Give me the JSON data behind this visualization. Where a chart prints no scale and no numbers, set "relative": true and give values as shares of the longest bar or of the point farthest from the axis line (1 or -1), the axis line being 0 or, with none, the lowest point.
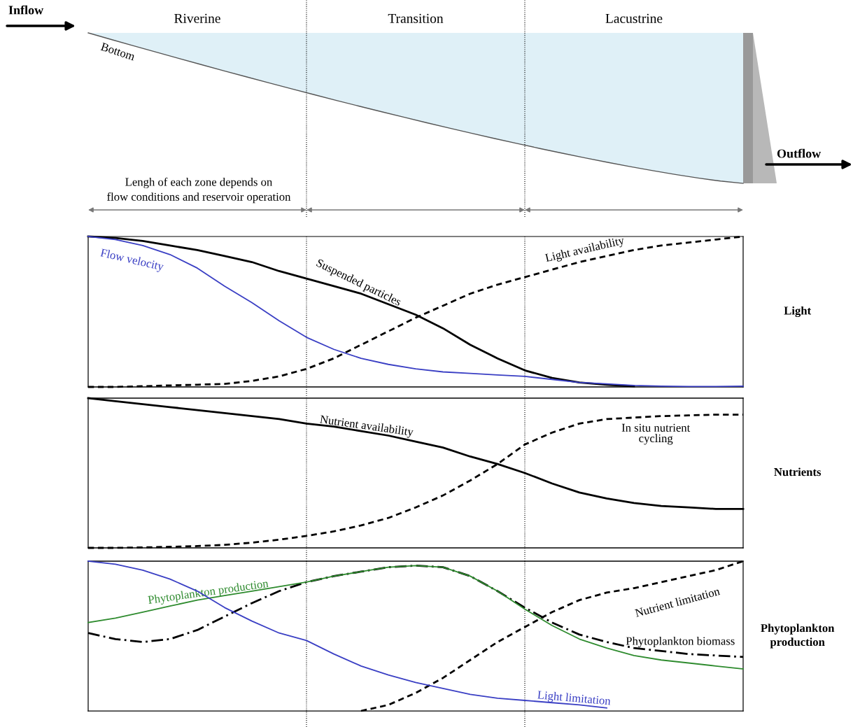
{
  "chart_data": [
    {
      "type": "other",
      "categories": [
        "Riverine",
        "Transition",
        "Lacustrine"
      ],
      "annotations": [
        "Inflow",
        "Outflow",
        "Bottom",
        "Lengh of each zone depends on\nflow conditions and reservoir operation"
      ]
    },
    {
      "type": "line",
      "relative": true,
      "ylabel": "Light",
      "categories": [
        null,
        null,
        null,
        null,
        null,
        null,
        null,
        null,
        null,
        null,
        null,
        null,
        null,
        null,
        null,
        null,
        null,
        null,
        null,
        null,
        null,
        null,
        null,
        null,
        null
      ],
      "series": [
        {
          "name": "Flow velocity",
          "color": "#3a3fc4",
          "line_style": "solid",
          "values": [
            1.0,
            0.98,
            0.94,
            0.88,
            0.79,
            0.67,
            0.56,
            0.44,
            0.33,
            0.25,
            0.19,
            0.15,
            0.12,
            0.1,
            0.09,
            0.08,
            0.07,
            0.05,
            0.03,
            0.02,
            0.01,
            0.005,
            0.003,
            0.003,
            0.005
          ]
        },
        {
          "name": "Suspended particles",
          "color": "#000000",
          "line_style": "solid",
          "values": [
            1.0,
            0.99,
            0.97,
            0.94,
            0.91,
            0.87,
            0.83,
            0.77,
            0.72,
            0.67,
            0.62,
            0.55,
            0.48,
            0.39,
            0.28,
            0.19,
            0.11,
            0.06,
            0.03,
            0.015,
            0.005,
            null,
            null,
            null,
            null
          ]
        },
        {
          "name": "Light availability",
          "color": "#000000",
          "line_style": "dashed",
          "values": [
            0,
            0,
            0.005,
            0.01,
            0.015,
            0.02,
            0.04,
            0.07,
            0.12,
            0.19,
            0.28,
            0.37,
            0.46,
            0.54,
            0.62,
            0.68,
            0.73,
            0.78,
            0.83,
            0.87,
            0.91,
            0.94,
            0.96,
            0.98,
            1.0
          ]
        }
      ]
    },
    {
      "type": "line",
      "relative": true,
      "ylabel": "Nutrients",
      "categories": [
        null,
        null,
        null,
        null,
        null,
        null,
        null,
        null,
        null,
        null,
        null,
        null,
        null,
        null,
        null,
        null,
        null,
        null,
        null,
        null,
        null,
        null,
        null,
        null,
        null
      ],
      "series": [
        {
          "name": "Nutrient availability",
          "color": "#000000",
          "line_style": "solid",
          "values": [
            1.0,
            0.98,
            0.96,
            0.94,
            0.92,
            0.9,
            0.88,
            0.86,
            0.83,
            0.81,
            0.78,
            0.75,
            0.71,
            0.67,
            0.61,
            0.56,
            0.5,
            0.43,
            0.37,
            0.33,
            0.3,
            0.28,
            0.27,
            0.26,
            0.26
          ]
        },
        {
          "name": "In situ nutrient\ncycling",
          "color": "#000000",
          "line_style": "dashed",
          "values": [
            0,
            0,
            0.003,
            0.007,
            0.012,
            0.02,
            0.035,
            0.055,
            0.08,
            0.11,
            0.15,
            0.2,
            0.27,
            0.35,
            0.45,
            0.56,
            0.69,
            0.77,
            0.83,
            0.86,
            0.87,
            0.88,
            0.885,
            0.89,
            0.89
          ]
        }
      ]
    },
    {
      "type": "line",
      "relative": true,
      "ylabel": "Phytoplankton\nproduction",
      "categories": [
        null,
        null,
        null,
        null,
        null,
        null,
        null,
        null,
        null,
        null,
        null,
        null,
        null,
        null,
        null,
        null,
        null,
        null,
        null,
        null,
        null,
        null,
        null,
        null,
        null
      ],
      "series": [
        {
          "name": "Phytoplankton production",
          "color": "#2e8b2e",
          "line_style": "solid",
          "values": [
            0.59,
            0.62,
            0.66,
            0.7,
            0.74,
            0.77,
            0.8,
            0.83,
            0.86,
            0.9,
            0.93,
            0.96,
            0.97,
            0.96,
            0.9,
            0.8,
            0.68,
            0.57,
            0.48,
            0.42,
            0.37,
            0.34,
            0.32,
            0.3,
            0.28
          ]
        },
        {
          "name": "Light limitation",
          "color": "#3a3fc4",
          "line_style": "solid",
          "values": [
            1.0,
            0.98,
            0.94,
            0.88,
            0.8,
            0.69,
            0.6,
            0.52,
            0.47,
            0.38,
            0.3,
            0.24,
            0.19,
            0.15,
            0.11,
            0.085,
            0.07,
            0.055,
            0.04,
            0.02,
            null,
            null,
            null,
            null,
            null
          ]
        },
        {
          "name": "Nutrient limitation",
          "color": "#000000",
          "line_style": "dashed",
          "values": [
            null,
            null,
            null,
            null,
            null,
            null,
            null,
            null,
            null,
            null,
            0,
            0.04,
            0.12,
            0.22,
            0.34,
            0.46,
            0.56,
            0.66,
            0.74,
            0.79,
            0.82,
            0.86,
            0.9,
            0.94,
            1.0
          ]
        },
        {
          "name": "Phytoplankton biomass",
          "color": "#000000",
          "line_style": "dashdot",
          "values": [
            0.52,
            0.48,
            0.46,
            0.48,
            0.54,
            0.63,
            0.72,
            0.8,
            0.86,
            0.9,
            0.93,
            0.96,
            0.97,
            0.96,
            0.9,
            0.8,
            0.69,
            0.59,
            0.51,
            0.46,
            0.42,
            0.4,
            0.38,
            0.37,
            0.36
          ]
        }
      ]
    }
  ]
}
